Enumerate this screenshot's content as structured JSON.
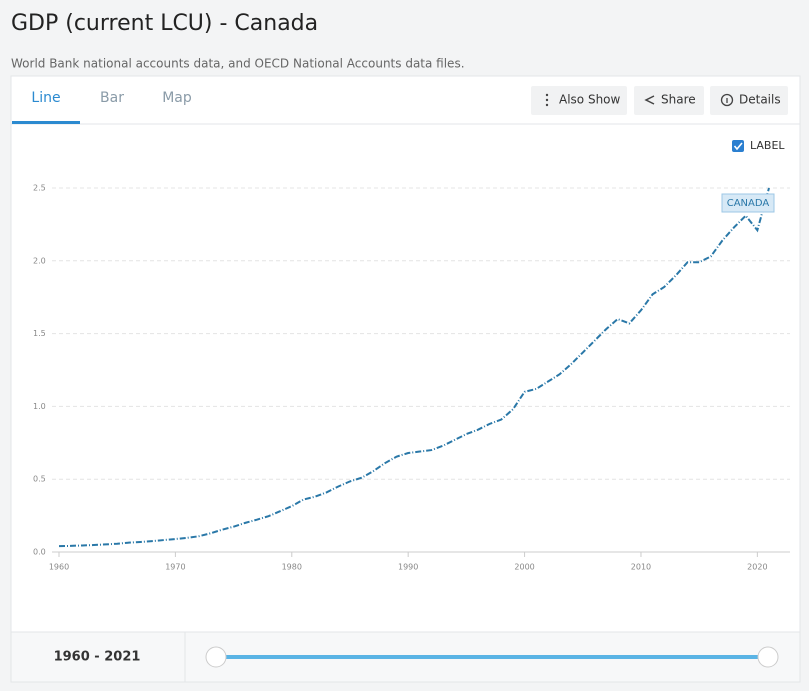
{
  "header": {
    "title": "GDP (current LCU) - Canada",
    "subtitle": "World Bank national accounts data, and OECD National Accounts data files."
  },
  "tabs": [
    "Line",
    "Bar",
    "Map"
  ],
  "buttons": [
    "Also Show",
    "Share",
    "Details"
  ],
  "label_toggle": "LABEL",
  "range": "1960 - 2021",
  "chart_data": {
    "type": "line",
    "x": [
      1960,
      1961,
      1962,
      1963,
      1964,
      1965,
      1966,
      1967,
      1968,
      1969,
      1970,
      1971,
      1972,
      1973,
      1974,
      1975,
      1976,
      1977,
      1978,
      1979,
      1980,
      1981,
      1982,
      1983,
      1984,
      1985,
      1986,
      1987,
      1988,
      1989,
      1990,
      1991,
      1992,
      1993,
      1994,
      1995,
      1996,
      1997,
      1998,
      1999,
      2000,
      2001,
      2002,
      2003,
      2004,
      2005,
      2006,
      2007,
      2008,
      2009,
      2010,
      2011,
      2012,
      2013,
      2014,
      2015,
      2016,
      2017,
      2018,
      2019,
      2020,
      2021
    ],
    "series": [
      {
        "name": "CANADA",
        "color": "#2a78a8",
        "values": [
          0.04,
          0.042,
          0.045,
          0.048,
          0.052,
          0.057,
          0.064,
          0.069,
          0.075,
          0.082,
          0.089,
          0.097,
          0.108,
          0.128,
          0.153,
          0.174,
          0.2,
          0.222,
          0.246,
          0.28,
          0.315,
          0.36,
          0.38,
          0.41,
          0.45,
          0.485,
          0.51,
          0.555,
          0.61,
          0.655,
          0.68,
          0.69,
          0.7,
          0.73,
          0.77,
          0.81,
          0.84,
          0.88,
          0.91,
          0.98,
          1.1,
          1.12,
          1.17,
          1.22,
          1.29,
          1.37,
          1.45,
          1.53,
          1.6,
          1.57,
          1.66,
          1.77,
          1.82,
          1.9,
          1.99,
          1.99,
          2.03,
          2.14,
          2.23,
          2.31,
          2.21,
          2.5
        ]
      }
    ],
    "xlim": [
      1960,
      2021
    ],
    "xticks": [
      1960,
      1970,
      1980,
      1990,
      2000,
      2010,
      2020
    ],
    "ylim": [
      0,
      2.5
    ],
    "yticks": [
      {
        "value": 0,
        "label": "0.0"
      },
      0.5,
      {
        "value": 1,
        "label": "1.0"
      },
      1.5,
      {
        "value": 2,
        "label": "2.0"
      },
      2.5
    ],
    "grid": true
  }
}
